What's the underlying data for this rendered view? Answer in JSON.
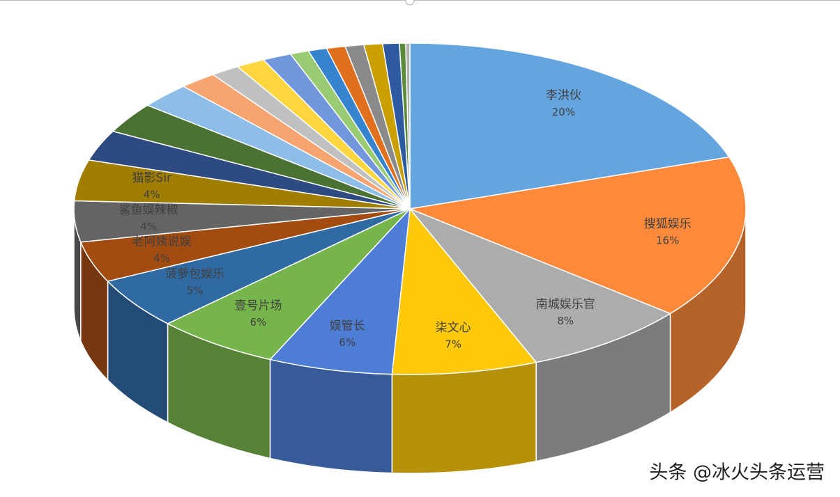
{
  "chart_data": {
    "type": "pie3d",
    "categories": [
      "李洪伙",
      "搜狐娱乐",
      "南城娱乐官",
      "柒文心",
      "娱管长",
      "壹号片场",
      "菠萝包娱乐",
      "老阿姨说娱",
      "鲨鱼娱辣椒",
      "猫影Sir",
      null,
      null,
      null,
      null,
      null,
      null,
      null,
      null,
      null,
      null,
      null,
      null,
      null,
      null,
      null
    ],
    "values": [
      20,
      16,
      8,
      7,
      6,
      6,
      5,
      4,
      4,
      4,
      3,
      3,
      2.5,
      1.8,
      1.4,
      1.4,
      1.4,
      0.9,
      0.9,
      0.9,
      0.9,
      0.9,
      0.8,
      0.3,
      0.2
    ],
    "value_labels": [
      "20%",
      "16%",
      "8%",
      "7%",
      "6%",
      "6%",
      "5%",
      "4%",
      "4%",
      "4%",
      null,
      null,
      null,
      null,
      null,
      null,
      null,
      null,
      null,
      null,
      null,
      null,
      null,
      null,
      null
    ],
    "colors": [
      "#64a5e0",
      "#fd8a3a",
      "#acacac",
      "#fdc90a",
      "#4d7dd4",
      "#76b54b",
      "#2f6aa3",
      "#a34c12",
      "#646464",
      "#a07e00",
      "#2d4b80",
      "#4a7232",
      "#8ebde8",
      "#f8a470",
      "#c0c0c0",
      "#fdd640",
      "#7397dc",
      "#98cb72",
      "#3683d0",
      "#e0701d",
      "#8a8a8a",
      "#c9a000",
      "#2e5aa0",
      "#5a8a3a",
      "#b0b0b0"
    ],
    "watermark": "头条 @冰火头条运营"
  }
}
